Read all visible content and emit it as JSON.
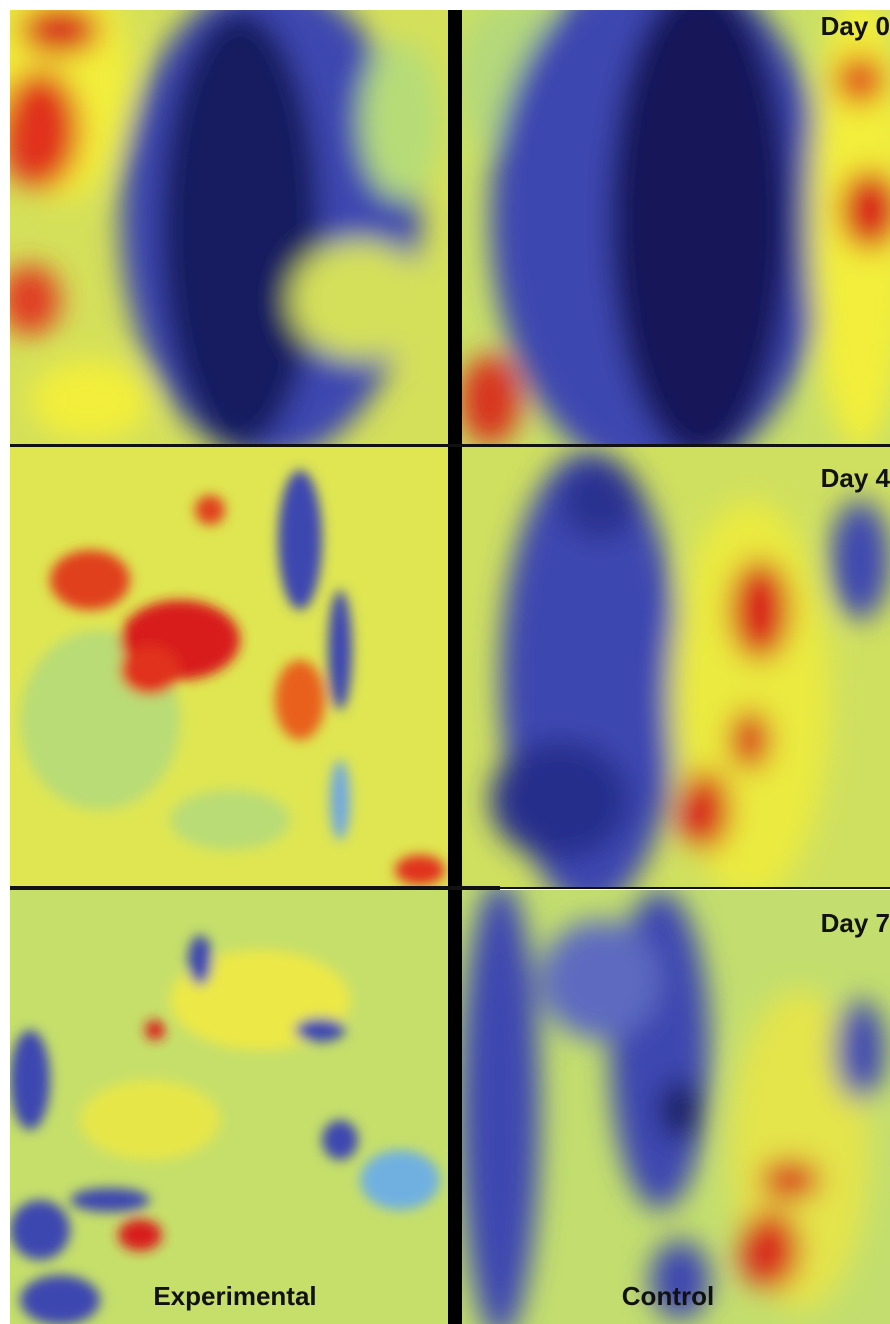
{
  "days": [
    "Day 0",
    "Day 4",
    "Day 7"
  ],
  "groups": [
    "Experimental",
    "Control"
  ]
}
